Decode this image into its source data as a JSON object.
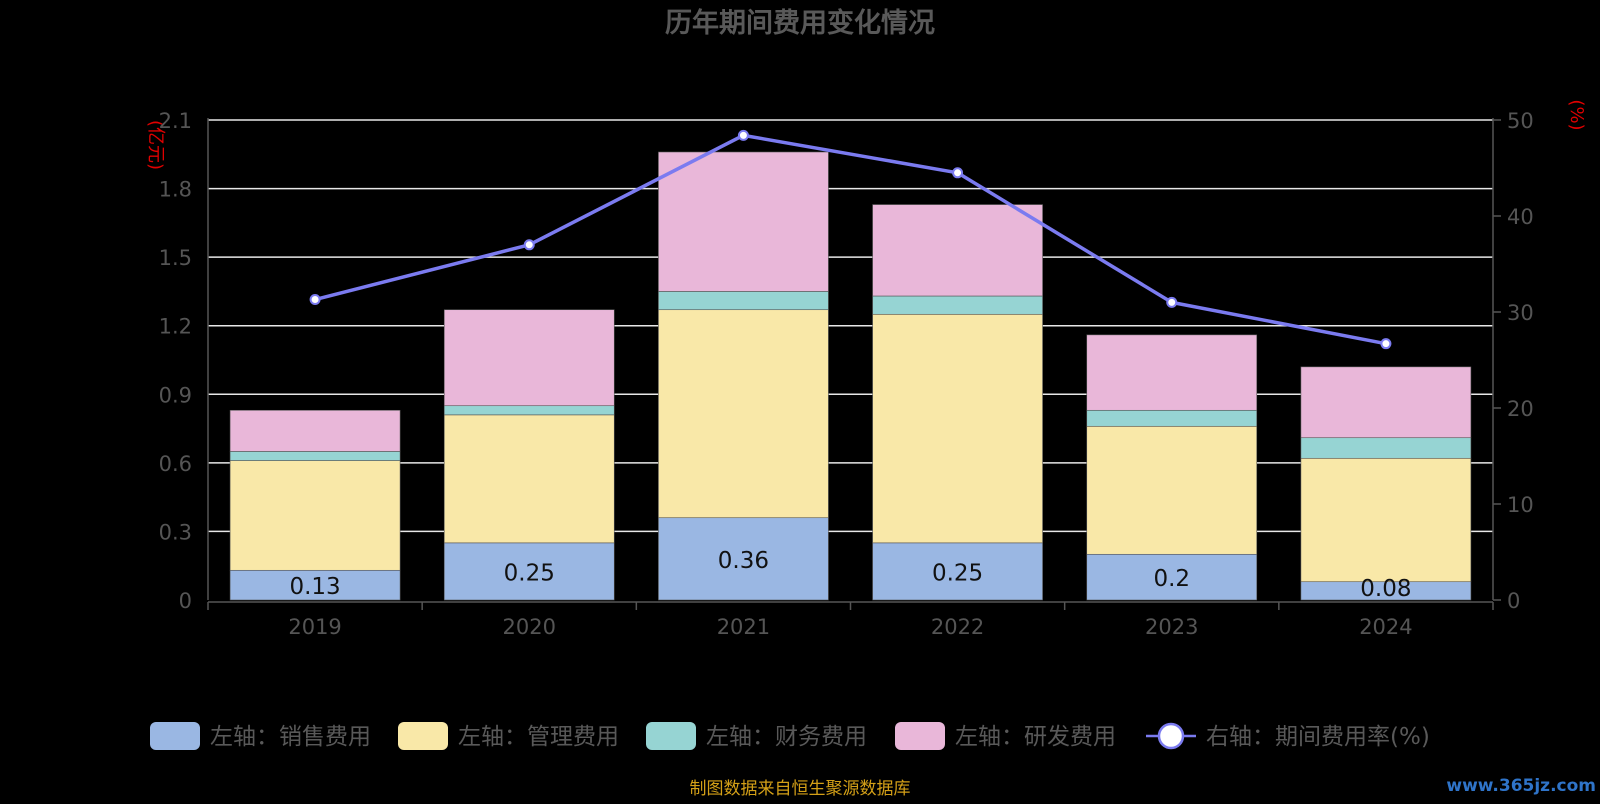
{
  "chart_data": {
    "type": "bar",
    "title": "历年期间费用变化情况",
    "categories": [
      "2019",
      "2020",
      "2021",
      "2022",
      "2023",
      "2024"
    ],
    "y_left": {
      "label": "(亿元)",
      "range": [
        0,
        2.1
      ],
      "ticks": [
        "0",
        "0.3",
        "0.6",
        "0.9",
        "1.2",
        "1.5",
        "1.8",
        "2.1"
      ]
    },
    "y_right": {
      "label": "(%)",
      "range": [
        0,
        50
      ],
      "ticks": [
        "0",
        "10",
        "20",
        "30",
        "40",
        "50"
      ]
    },
    "grid": true,
    "stacked": true,
    "series": [
      {
        "name": "左轴：销售费用",
        "color": "#9ab7e3",
        "values": [
          0.13,
          0.25,
          0.36,
          0.25,
          0.2,
          0.08
        ],
        "data_labels": [
          "0.13",
          "0.25",
          "0.36",
          "0.25",
          "0.2",
          "0.08"
        ]
      },
      {
        "name": "左轴：管理费用",
        "color": "#f9e8a8",
        "values": [
          0.48,
          0.56,
          0.91,
          1.0,
          0.56,
          0.54
        ]
      },
      {
        "name": "左轴：财务费用",
        "color": "#96d4d3",
        "values": [
          0.04,
          0.04,
          0.08,
          0.08,
          0.07,
          0.09
        ]
      },
      {
        "name": "左轴：研发费用",
        "color": "#e9b7d9",
        "values": [
          0.18,
          0.42,
          0.61,
          0.4,
          0.33,
          0.31
        ]
      }
    ],
    "line_series": {
      "name": "右轴：期间费用率(%)",
      "axis": "right",
      "color": "#7b7bf0",
      "values": [
        31.3,
        37.0,
        48.4,
        44.5,
        31.0,
        26.7
      ]
    },
    "legend_position": "bottom",
    "source_note": "制图数据来自恒生聚源数据库",
    "watermark": "www.365jz.com"
  }
}
